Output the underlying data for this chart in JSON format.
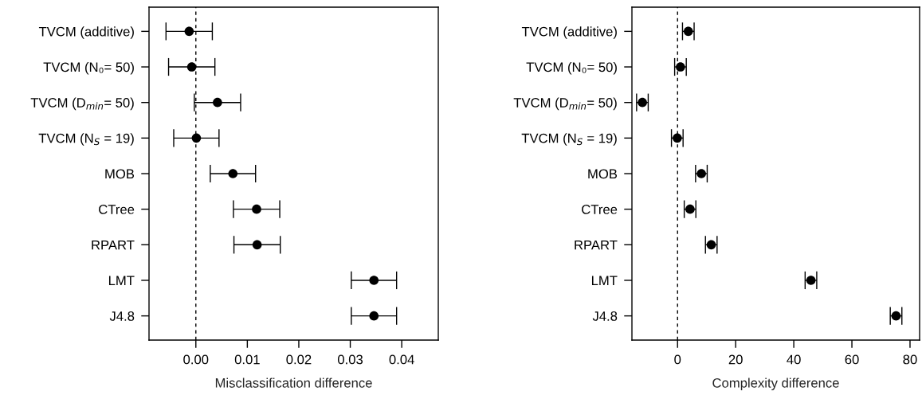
{
  "chart_data": [
    {
      "type": "scatter",
      "orientation": "horizontal",
      "xlabel": "Misclassification difference",
      "categories": [
        "TVCM (additive)",
        "TVCM (N₀= 50)",
        "TVCM (D$_{min}$= 50)",
        "TVCM (N$_{S}$ = 19)",
        "MOB",
        "CTree",
        "RPART",
        "LMT",
        "J4.8"
      ],
      "series": [
        {
          "color": "#000000",
          "values": [
            -0.0013,
            -0.0008,
            0.0042,
            0.0001,
            0.0072,
            0.0118,
            0.0119,
            0.0346,
            0.0346
          ],
          "errors": [
            0.0045,
            0.0045,
            0.0045,
            0.0044,
            0.0044,
            0.0045,
            0.0045,
            0.0044,
            0.0044
          ]
        }
      ],
      "xlim": [
        -0.0091,
        0.0471
      ],
      "xticks": [
        {
          "value": 0,
          "label": "0.00"
        },
        0.01,
        0.02,
        0.03,
        0.04
      ],
      "marker": "circle",
      "grid": false,
      "legend": false,
      "ref_lines": [
        {
          "axis": "x",
          "value": 0,
          "line_style": "dashed",
          "color": "#000000"
        }
      ]
    },
    {
      "type": "scatter",
      "orientation": "horizontal",
      "xlabel": "Complexity difference",
      "categories": [
        "TVCM (additive)",
        "TVCM (N₀= 50)",
        "TVCM (D$_{min}$= 50)",
        "TVCM (N$_{S}$ = 19)",
        "MOB",
        "CTree",
        "RPART",
        "LMT",
        "J4.8"
      ],
      "series": [
        {
          "color": "#000000",
          "values": [
            3.7,
            1.0,
            -12.1,
            -0.1,
            8.2,
            4.3,
            11.6,
            45.9,
            75.2
          ],
          "errors": [
            2.0,
            2.0,
            2.0,
            2.0,
            2.0,
            2.0,
            2.0,
            2.0,
            2.0
          ]
        }
      ],
      "xlim": [
        -15.7,
        83.3
      ],
      "xticks": [
        0,
        20,
        40,
        60,
        80
      ],
      "marker": "circle",
      "grid": false,
      "legend": false,
      "ref_lines": [
        {
          "axis": "x",
          "value": 0,
          "line_style": "dashed",
          "color": "#000000"
        }
      ]
    }
  ]
}
